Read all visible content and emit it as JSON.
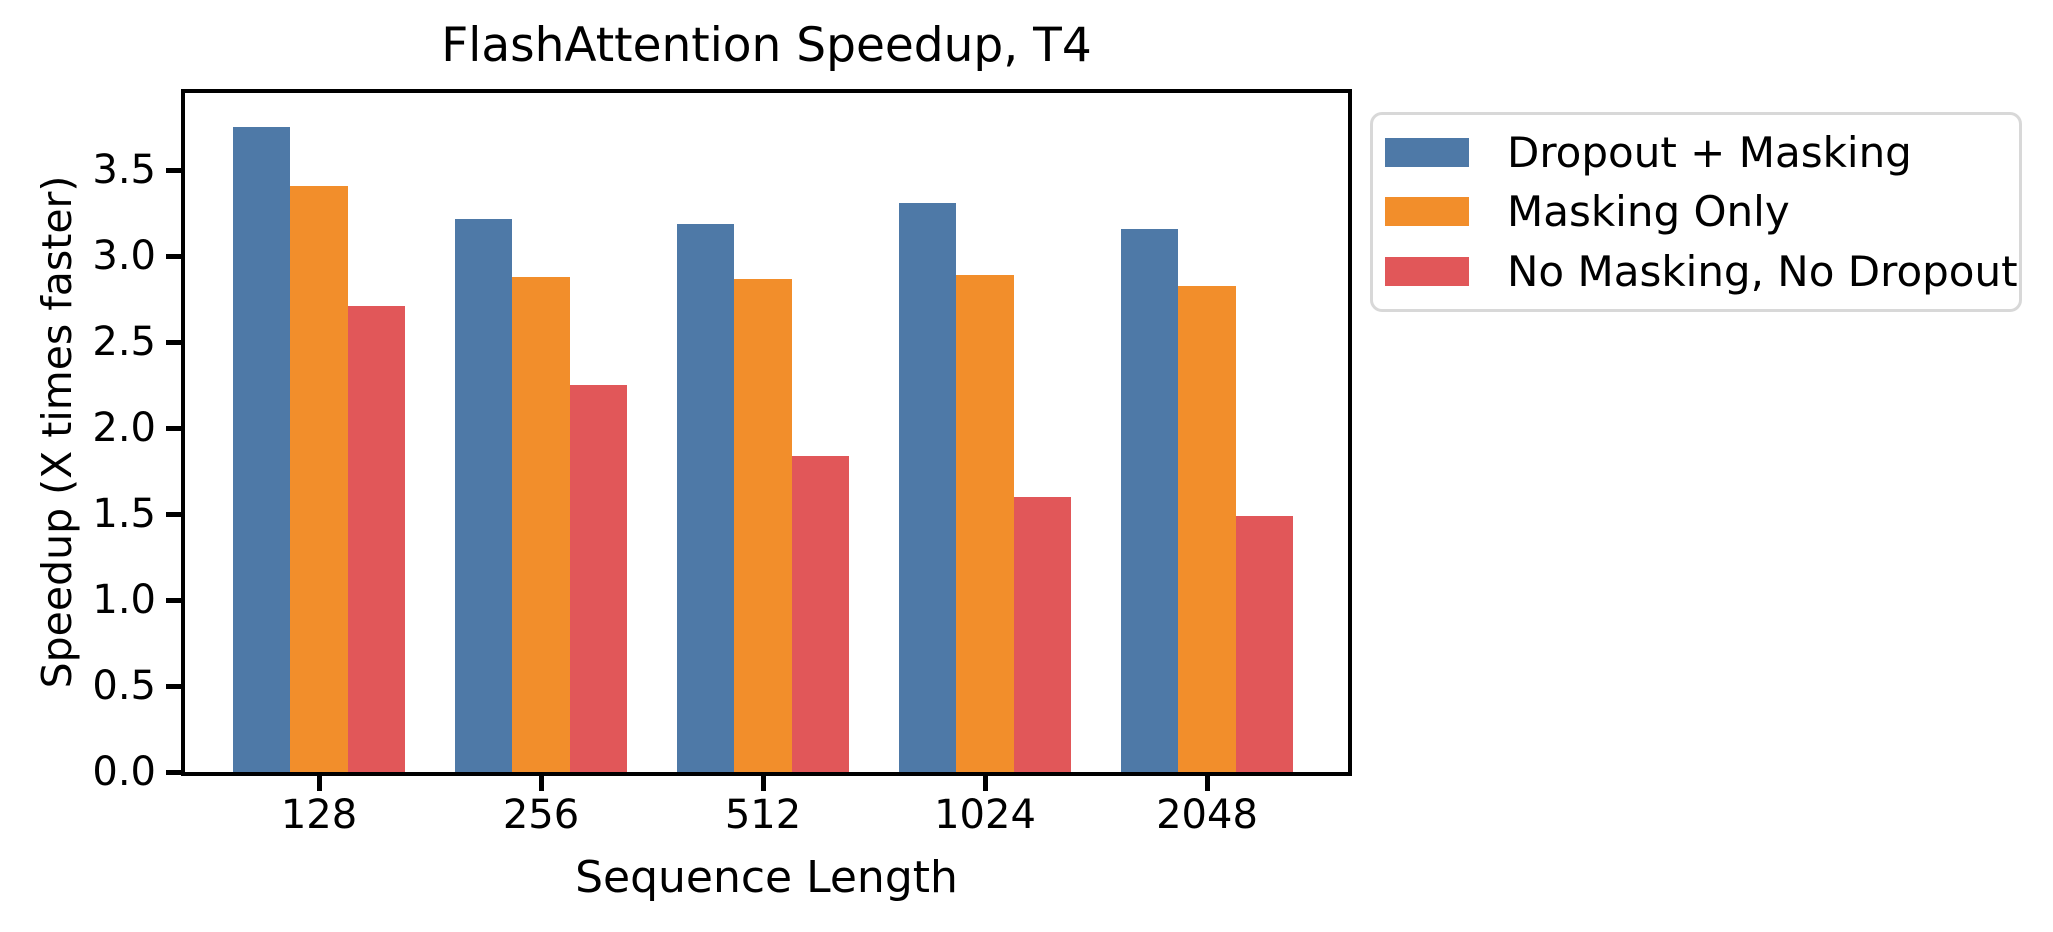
{
  "chart_data": {
    "type": "bar",
    "title": "FlashAttention Speedup, T4",
    "xlabel": "Sequence Length",
    "ylabel": "Speedup (X times faster)",
    "categories": [
      "128",
      "256",
      "512",
      "1024",
      "2048"
    ],
    "series": [
      {
        "name": "Dropout + Masking",
        "color": "#4E79A7",
        "values": [
          3.75,
          3.22,
          3.19,
          3.31,
          3.16
        ]
      },
      {
        "name": "Masking Only",
        "color": "#F28E2B",
        "values": [
          3.41,
          2.88,
          2.87,
          2.89,
          2.83
        ]
      },
      {
        "name": "No Masking, No Dropout",
        "color": "#E15759",
        "values": [
          2.71,
          2.25,
          1.84,
          1.6,
          1.49
        ]
      }
    ],
    "y_ticks": [
      "0.0",
      "0.5",
      "1.0",
      "1.5",
      "2.0",
      "2.5",
      "3.0",
      "3.5"
    ],
    "ylim": [
      0,
      3.95
    ],
    "grid": false,
    "legend_position": "outside-right",
    "axis_color": "#000000",
    "legend_border_color": "#d8d8d8"
  }
}
